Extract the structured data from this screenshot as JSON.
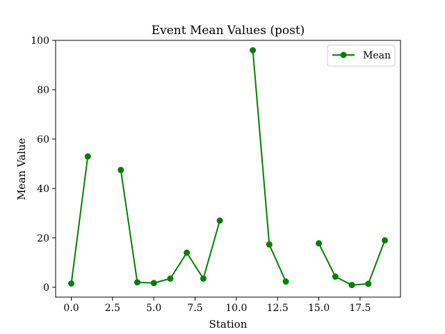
{
  "chart_data": {
    "type": "line",
    "title": "Event Mean Values (post)",
    "xlabel": "Station",
    "ylabel": "Mean Value",
    "xlim": [
      -0.95,
      19.95
    ],
    "ylim": [
      -4,
      100
    ],
    "x_ticks": [
      0.0,
      2.5,
      5.0,
      7.5,
      10.0,
      12.5,
      15.0,
      17.5
    ],
    "x_tick_labels": [
      "0.0",
      "2.5",
      "5.0",
      "7.5",
      "10.0",
      "12.5",
      "15.0",
      "17.5"
    ],
    "y_ticks": [
      0,
      20,
      40,
      60,
      80,
      100
    ],
    "y_tick_labels": [
      "0",
      "20",
      "40",
      "60",
      "80",
      "100"
    ],
    "grid": false,
    "legend_position": "top-right",
    "series": [
      {
        "name": "Mean",
        "color": "#008000",
        "marker": "circle",
        "points": [
          {
            "x": 0,
            "y": 1.5
          },
          {
            "x": 1,
            "y": 53
          },
          {
            "x": 2,
            "y": null
          },
          {
            "x": 3,
            "y": 47.5
          },
          {
            "x": 4,
            "y": 2
          },
          {
            "x": 5,
            "y": 1.7
          },
          {
            "x": 6,
            "y": 3.5
          },
          {
            "x": 7,
            "y": 14
          },
          {
            "x": 8,
            "y": 3.5
          },
          {
            "x": 9,
            "y": 27
          },
          {
            "x": 10,
            "y": null
          },
          {
            "x": 11,
            "y": 96
          },
          {
            "x": 12,
            "y": 17.3
          },
          {
            "x": 13,
            "y": 2.3
          },
          {
            "x": 14,
            "y": null
          },
          {
            "x": 15,
            "y": 17.8
          },
          {
            "x": 16,
            "y": 4.3
          },
          {
            "x": 17,
            "y": 0.9
          },
          {
            "x": 18,
            "y": 1.4
          },
          {
            "x": 19,
            "y": 19
          }
        ]
      }
    ]
  }
}
